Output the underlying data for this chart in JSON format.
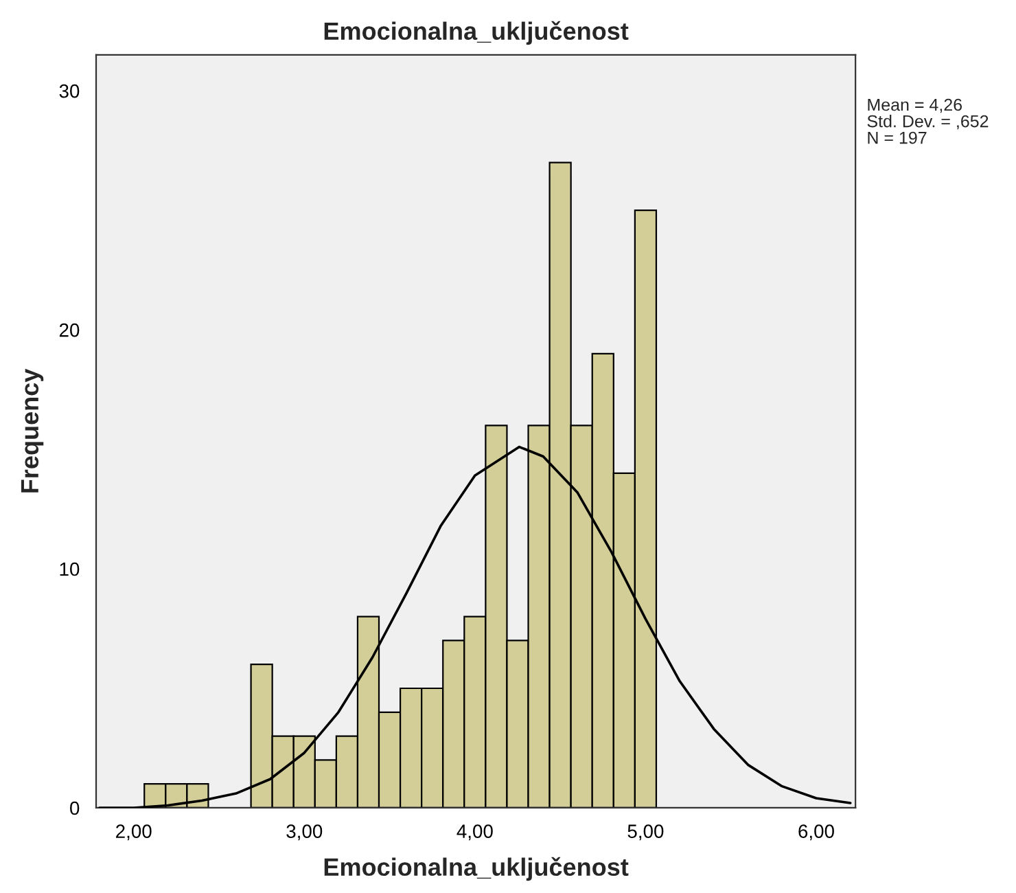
{
  "chart_data": {
    "type": "histogram",
    "title": "Emocionalna_uključenost",
    "xlabel": "Emocionalna_uključenost",
    "ylabel": "Frequency",
    "bins": [
      2.0625,
      2.1875,
      2.3125,
      2.4375,
      2.5625,
      2.6875,
      2.8125,
      2.9375,
      3.0625,
      3.1875,
      3.3125,
      3.4375,
      3.5625,
      3.6875,
      3.8125,
      3.9375,
      4.0625,
      4.1875,
      4.3125,
      4.4375,
      4.5625,
      4.6875,
      4.8125,
      4.9375,
      5.0625
    ],
    "series": [
      {
        "color": "#d3ce97",
        "values": [
          1,
          1,
          1,
          0,
          0,
          6,
          3,
          3,
          2,
          3,
          8,
          4,
          5,
          5,
          7,
          8,
          16,
          7,
          16,
          27,
          16,
          19,
          14,
          25
        ]
      },
      {
        "type": "line",
        "color": "#000000",
        "x": [
          1.8,
          2.0,
          2.2,
          2.4,
          2.6,
          2.8,
          3.0,
          3.2,
          3.4,
          3.6,
          3.8,
          4.0,
          4.26,
          4.4,
          4.6,
          4.8,
          5.0,
          5.2,
          5.4,
          5.6,
          5.8,
          6.0,
          6.2
        ],
        "values": [
          0.0,
          0.0,
          0.1,
          0.3,
          0.6,
          1.2,
          2.3,
          4.0,
          6.3,
          9.0,
          11.8,
          13.9,
          15.1,
          14.7,
          13.2,
          10.7,
          7.9,
          5.3,
          3.3,
          1.8,
          0.9,
          0.4,
          0.2
        ]
      }
    ],
    "xlim": [
      1.78,
      6.23
    ],
    "ylim": [
      0,
      31.5
    ],
    "xticks": [
      {
        "value": 2,
        "label": "2,00"
      },
      {
        "value": 3,
        "label": "3,00"
      },
      {
        "value": 4,
        "label": "4,00"
      },
      {
        "value": 5,
        "label": "5,00"
      },
      {
        "value": 6,
        "label": "6,00"
      }
    ],
    "yticks": [
      0,
      10,
      20,
      30
    ],
    "grid": false,
    "legend": false,
    "annotations": [
      "Mean = 4,26",
      "Std. Dev. = ,652",
      "N = 197"
    ]
  }
}
